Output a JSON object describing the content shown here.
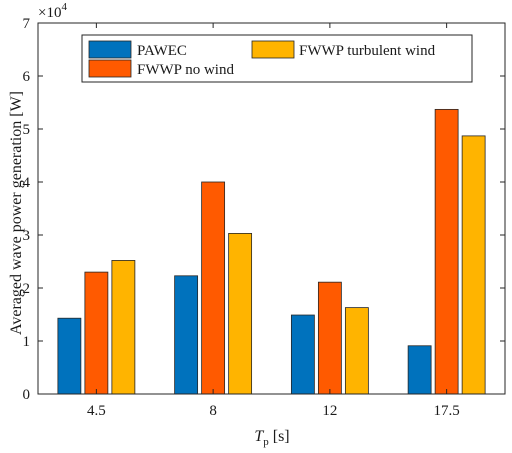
{
  "chart_data": {
    "type": "bar",
    "categories": [
      "4.5",
      "8",
      "12",
      "17.5"
    ],
    "series": [
      {
        "name": "PAWEC",
        "color": "#0072BD",
        "values": [
          14300,
          22300,
          14900,
          9100
        ]
      },
      {
        "name": "FWWP no wind",
        "color": "#FF5A00",
        "values": [
          23000,
          40000,
          21100,
          53700
        ]
      },
      {
        "name": "FWWP turbulent wind",
        "color": "#FFB400",
        "values": [
          25200,
          30300,
          16300,
          48700
        ]
      }
    ],
    "ylim": [
      0,
      70000
    ],
    "y_ticks": [
      0,
      1,
      2,
      3,
      4,
      5,
      6,
      7
    ],
    "y_multiplier_base": "×10",
    "y_multiplier_exp": "4",
    "xlabel_main": "T",
    "xlabel_sub": "p",
    "xlabel_unit": " [s]",
    "ylabel": "Averaged wave power generation [W]",
    "legend_position": "top",
    "grid": false
  }
}
